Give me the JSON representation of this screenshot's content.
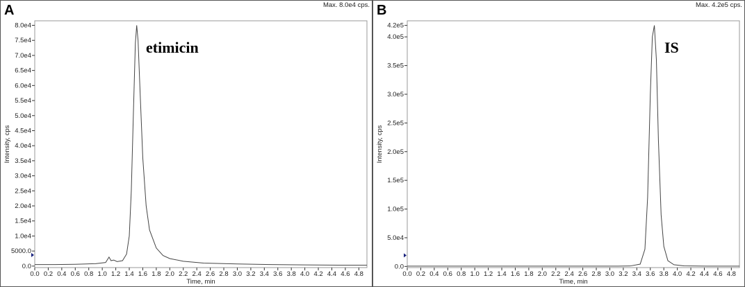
{
  "chart_data": [
    {
      "type": "line",
      "panel_label": "A",
      "max_label": "Max. 8.0e4 cps.",
      "annotation": "etimicin",
      "x_label": "Time, min",
      "y_label": "Intensity, cps",
      "color": "#444444",
      "xlim": [
        0,
        4.92
      ],
      "ylim": [
        -500,
        81500
      ],
      "xticks": [
        {
          "value": 0,
          "label": "0.0"
        },
        0.2,
        0.4,
        0.6,
        0.8,
        {
          "value": 1,
          "label": "1.0"
        },
        1.2,
        1.4,
        1.6,
        1.8,
        {
          "value": 2,
          "label": "2.0"
        },
        2.2,
        2.4,
        2.6,
        2.8,
        {
          "value": 3,
          "label": "3.0"
        },
        3.2,
        3.4,
        3.6,
        3.8,
        {
          "value": 4,
          "label": "4.0"
        },
        4.2,
        4.4,
        4.6,
        4.8
      ],
      "yticks": [
        {
          "value": 0,
          "label": "0.0"
        },
        {
          "value": 5000,
          "label": "5000.0"
        },
        {
          "value": 10000,
          "label": "1.0e4"
        },
        {
          "value": 15000,
          "label": "1.5e4"
        },
        {
          "value": 20000,
          "label": "2.0e4"
        },
        {
          "value": 25000,
          "label": "2.5e4"
        },
        {
          "value": 30000,
          "label": "3.0e4"
        },
        {
          "value": 35000,
          "label": "3.5e4"
        },
        {
          "value": 40000,
          "label": "4.0e4"
        },
        {
          "value": 45000,
          "label": "4.5e4"
        },
        {
          "value": 50000,
          "label": "5.0e4"
        },
        {
          "value": 55000,
          "label": "5.5e4"
        },
        {
          "value": 60000,
          "label": "6.0e4"
        },
        {
          "value": 65000,
          "label": "6.5e4"
        },
        {
          "value": 70000,
          "label": "7.0e4"
        },
        {
          "value": 75000,
          "label": "7.5e4"
        },
        {
          "value": 80000,
          "label": "8.0e4"
        }
      ],
      "x": [
        0,
        0.3,
        0.6,
        0.9,
        1.05,
        1.1,
        1.13,
        1.17,
        1.22,
        1.3,
        1.36,
        1.4,
        1.43,
        1.46,
        1.49,
        1.51,
        1.53,
        1.56,
        1.6,
        1.65,
        1.7,
        1.8,
        1.9,
        2.0,
        2.2,
        2.5,
        3.0,
        3.5,
        4.0,
        4.5,
        4.92
      ],
      "values": [
        500,
        500,
        600,
        800,
        1200,
        3000,
        1800,
        2000,
        1500,
        1800,
        4000,
        10000,
        25000,
        50000,
        74000,
        80000,
        75000,
        58000,
        36000,
        20000,
        12000,
        6000,
        3500,
        2500,
        1600,
        1000,
        700,
        500,
        400,
        300,
        300
      ]
    },
    {
      "type": "line",
      "panel_label": "B",
      "max_label": "Max. 4.2e5 cps.",
      "annotation": "IS",
      "x_label": "Time, min",
      "y_label": "Intensity, cps",
      "color": "#444444",
      "xlim": [
        0,
        4.92
      ],
      "ylim": [
        -2000,
        428000
      ],
      "xticks": [
        {
          "value": 0,
          "label": "0.0"
        },
        0.2,
        0.4,
        0.6,
        0.8,
        {
          "value": 1,
          "label": "1.0"
        },
        1.2,
        1.4,
        1.6,
        1.8,
        {
          "value": 2,
          "label": "2.0"
        },
        2.2,
        2.4,
        2.6,
        2.8,
        {
          "value": 3,
          "label": "3.0"
        },
        3.2,
        3.4,
        3.6,
        3.8,
        {
          "value": 4,
          "label": "4.0"
        },
        4.2,
        4.4,
        4.6,
        4.8
      ],
      "yticks": [
        {
          "value": 0,
          "label": "0.0"
        },
        {
          "value": 50000,
          "label": "5.0e4"
        },
        {
          "value": 100000,
          "label": "1.0e5"
        },
        {
          "value": 150000,
          "label": "1.5e5"
        },
        {
          "value": 200000,
          "label": "2.0e5"
        },
        {
          "value": 250000,
          "label": "2.5e5"
        },
        {
          "value": 300000,
          "label": "3.0e5"
        },
        {
          "value": 350000,
          "label": "3.5e5"
        },
        {
          "value": 400000,
          "label": "4.0e5"
        },
        {
          "value": 420000,
          "label": "4.2e5"
        }
      ],
      "x": [
        0,
        1,
        2,
        3,
        3.3,
        3.45,
        3.52,
        3.56,
        3.6,
        3.63,
        3.66,
        3.69,
        3.72,
        3.76,
        3.8,
        3.86,
        3.95,
        4.1,
        4.5,
        4.92
      ],
      "values": [
        500,
        500,
        500,
        500,
        800,
        4000,
        30000,
        120000,
        300000,
        400000,
        420000,
        360000,
        220000,
        90000,
        35000,
        10000,
        3000,
        1000,
        500,
        500
      ]
    }
  ]
}
